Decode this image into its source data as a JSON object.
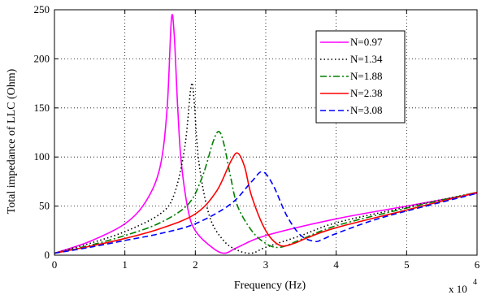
{
  "chart_data": {
    "type": "line",
    "xlabel": "Frequency (Hz)",
    "ylabel": "Total impedance of LLC (Ohm)",
    "x_multiplier_label": "x 10",
    "x_multiplier_exponent": "4",
    "xlim": [
      0,
      6
    ],
    "ylim": [
      0,
      250
    ],
    "xticks": [
      "0",
      "1",
      "2",
      "3",
      "4",
      "5",
      "6"
    ],
    "yticks": [
      "0",
      "50",
      "100",
      "150",
      "200",
      "250"
    ],
    "grid": true,
    "legend_position": "top-right",
    "series": [
      {
        "name": "N=0.97",
        "color": "#ff00ff",
        "dash": "solid",
        "x": [
          0,
          0.5,
          1.0,
          1.3,
          1.5,
          1.6,
          1.66,
          1.7,
          1.75,
          1.8,
          1.9,
          2.0,
          2.2,
          2.4,
          2.6,
          3.0,
          4.0,
          5.0,
          6.0
        ],
        "y": [
          2,
          14,
          32,
          55,
          90,
          150,
          240,
          225,
          150,
          95,
          45,
          25,
          10,
          2,
          8,
          20,
          37,
          50,
          63
        ]
      },
      {
        "name": "N=1.34",
        "color": "#000000",
        "dash": "dotted",
        "x": [
          0,
          0.5,
          1.0,
          1.5,
          1.7,
          1.85,
          1.94,
          1.98,
          2.05,
          2.2,
          2.4,
          2.6,
          2.8,
          3.0,
          3.5,
          4.0,
          5.0,
          6.0
        ],
        "y": [
          2,
          12,
          24,
          42,
          62,
          110,
          172,
          160,
          95,
          40,
          15,
          5,
          2,
          8,
          20,
          33,
          49,
          64
        ]
      },
      {
        "name": "N=1.88",
        "color": "#007f00",
        "dash": "dashdot",
        "x": [
          0,
          0.5,
          1.0,
          1.5,
          1.9,
          2.1,
          2.25,
          2.33,
          2.4,
          2.5,
          2.6,
          2.8,
          3.0,
          3.2,
          3.5,
          4.0,
          5.0,
          6.0
        ],
        "y": [
          2,
          10,
          20,
          33,
          52,
          80,
          115,
          126,
          115,
          80,
          50,
          25,
          12,
          8,
          16,
          30,
          48,
          64
        ]
      },
      {
        "name": "N=2.38",
        "color": "#ff0000",
        "dash": "solid",
        "x": [
          0,
          0.5,
          1.0,
          1.5,
          2.0,
          2.3,
          2.5,
          2.6,
          2.7,
          2.8,
          3.0,
          3.2,
          3.4,
          3.6,
          4.0,
          5.0,
          6.0
        ],
        "y": [
          2,
          9,
          17,
          27,
          42,
          65,
          95,
          104,
          90,
          60,
          25,
          10,
          12,
          18,
          28,
          46,
          64
        ]
      },
      {
        "name": "N=3.08",
        "color": "#0000ff",
        "dash": "dashed",
        "x": [
          0,
          0.5,
          1.0,
          1.5,
          2.0,
          2.5,
          2.8,
          2.95,
          3.1,
          3.3,
          3.5,
          3.7,
          3.8,
          4.0,
          4.5,
          5.0,
          6.0
        ],
        "y": [
          2,
          8,
          15,
          22,
          32,
          52,
          75,
          85,
          72,
          40,
          20,
          14,
          16,
          22,
          35,
          45,
          63
        ]
      }
    ]
  }
}
